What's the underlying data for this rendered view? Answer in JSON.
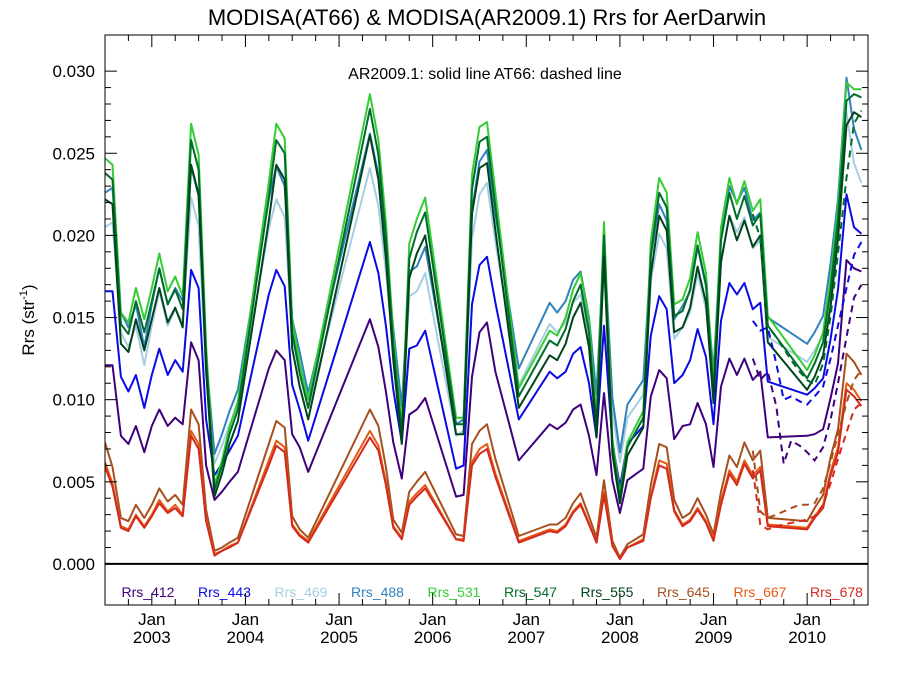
{
  "chart_data": {
    "type": "line",
    "title": "MODISA(AT66) & MODISA(AR2009.1)  Rrs for AerDarwin",
    "ylabel": "Rrs (str",
    "ylabel_sup": "-1",
    "ylabel_close": ")",
    "annotation": "AR2009.1: solid line   AT66: dashed line",
    "ylim": [
      -0.0025,
      0.0322
    ],
    "xlim": [
      2002.5,
      2010.65
    ],
    "yticks": [
      0.0,
      0.005,
      0.01,
      0.015,
      0.02,
      0.025,
      0.03
    ],
    "ytick_labels": [
      "0.000",
      "0.005",
      "0.010",
      "0.015",
      "0.020",
      "0.025",
      "0.030"
    ],
    "xticks": [
      2003,
      2004,
      2005,
      2006,
      2007,
      2008,
      2009,
      2010
    ],
    "xtick_labels_top": [
      "Jan",
      "Jan",
      "Jan",
      "Jan",
      "Jan",
      "Jan",
      "Jan",
      "Jan"
    ],
    "xtick_labels_bottom": [
      "2003",
      "2004",
      "2005",
      "2006",
      "2007",
      "2008",
      "2009",
      "2010"
    ],
    "legend_position": "bottom inside plot",
    "x": [
      2002.5,
      2002.58,
      2002.67,
      2002.75,
      2002.83,
      2002.92,
      2003.0,
      2003.08,
      2003.17,
      2003.25,
      2003.33,
      2003.42,
      2003.5,
      2003.58,
      2003.67,
      2003.75,
      2003.83,
      2003.92,
      2004.25,
      2004.33,
      2004.42,
      2004.5,
      2004.58,
      2004.67,
      2005.33,
      2005.42,
      2005.5,
      2005.58,
      2005.67,
      2005.75,
      2005.83,
      2005.92,
      2006.25,
      2006.33,
      2006.42,
      2006.5,
      2006.58,
      2006.67,
      2006.92,
      2007.25,
      2007.33,
      2007.42,
      2007.5,
      2007.58,
      2007.67,
      2007.75,
      2007.83,
      2007.92,
      2008.0,
      2008.08,
      2008.25,
      2008.33,
      2008.42,
      2008.5,
      2008.58,
      2008.67,
      2008.75,
      2008.83,
      2008.92,
      2009.0,
      2009.08,
      2009.17,
      2009.25,
      2009.33,
      2009.42,
      2009.5,
      2009.58,
      2010.0,
      2010.08,
      2010.17,
      2010.25,
      2010.33,
      2010.42,
      2010.5,
      2010.58
    ],
    "series": [
      {
        "name": "Rrs_412",
        "color": "#3f007d",
        "values": [
          0.0121,
          0.0121,
          0.0078,
          0.0073,
          0.0084,
          0.0068,
          0.0084,
          0.0094,
          0.0084,
          0.0089,
          0.0085,
          0.0135,
          0.0124,
          0.006,
          0.0039,
          0.0044,
          0.005,
          0.0056,
          0.0119,
          0.013,
          0.0124,
          0.0079,
          0.0071,
          0.0056,
          0.0149,
          0.0132,
          0.0105,
          0.0074,
          0.0052,
          0.0091,
          0.0094,
          0.0101,
          0.0041,
          0.0042,
          0.0114,
          0.0141,
          0.0147,
          0.0117,
          0.0063,
          0.0085,
          0.0082,
          0.0086,
          0.0094,
          0.0097,
          0.0078,
          0.0054,
          0.0104,
          0.0051,
          0.0031,
          0.0051,
          0.0058,
          0.0102,
          0.0118,
          0.0113,
          0.0076,
          0.0084,
          0.0085,
          0.0098,
          0.0085,
          0.0059,
          0.0108,
          0.0125,
          0.0115,
          0.0125,
          0.0112,
          0.0117,
          0.0077,
          0.0078,
          0.0079,
          0.0082,
          0.0101,
          0.0122,
          0.0185,
          0.018,
          0.0178
        ]
      },
      {
        "name": "Rrs_443",
        "color": "#0a0ae6",
        "values": [
          0.0166,
          0.0166,
          0.0114,
          0.0105,
          0.0115,
          0.0095,
          0.0115,
          0.0131,
          0.0115,
          0.0124,
          0.0117,
          0.0179,
          0.0168,
          0.0088,
          0.0054,
          0.0061,
          0.0069,
          0.0078,
          0.0164,
          0.0179,
          0.0169,
          0.0109,
          0.0094,
          0.0075,
          0.0196,
          0.0177,
          0.0145,
          0.0106,
          0.0074,
          0.0131,
          0.0133,
          0.0142,
          0.0058,
          0.006,
          0.0158,
          0.0182,
          0.0187,
          0.0159,
          0.0088,
          0.0117,
          0.0113,
          0.0117,
          0.0128,
          0.0132,
          0.011,
          0.0077,
          0.0145,
          0.0074,
          0.0047,
          0.0073,
          0.0084,
          0.0139,
          0.0163,
          0.0155,
          0.011,
          0.0115,
          0.0124,
          0.0143,
          0.0126,
          0.0085,
          0.0148,
          0.0171,
          0.0164,
          0.0171,
          0.0155,
          0.0159,
          0.0111,
          0.0103,
          0.0107,
          0.0113,
          0.0137,
          0.0167,
          0.0225,
          0.0205,
          0.0201
        ]
      },
      {
        "name": "Rrs_469",
        "color": "#a6cee3",
        "values": [
          0.0205,
          0.0208,
          0.0141,
          0.0132,
          0.0145,
          0.0121,
          0.0145,
          0.0166,
          0.0145,
          0.0155,
          0.0147,
          0.0223,
          0.0206,
          0.0115,
          0.0061,
          0.0072,
          0.0085,
          0.0097,
          0.0204,
          0.0222,
          0.0211,
          0.0137,
          0.0118,
          0.0095,
          0.0241,
          0.0218,
          0.0178,
          0.0131,
          0.0088,
          0.0163,
          0.0166,
          0.0177,
          0.0078,
          0.0081,
          0.0198,
          0.0225,
          0.0232,
          0.0196,
          0.0109,
          0.0146,
          0.0141,
          0.0147,
          0.0159,
          0.0164,
          0.0138,
          0.0095,
          0.018,
          0.0093,
          0.0062,
          0.0089,
          0.0103,
          0.0172,
          0.0201,
          0.0192,
          0.0137,
          0.0144,
          0.0153,
          0.0177,
          0.0155,
          0.0107,
          0.0183,
          0.0212,
          0.0202,
          0.0211,
          0.0192,
          0.0197,
          0.0138,
          0.0123,
          0.013,
          0.0139,
          0.0168,
          0.0204,
          0.0275,
          0.0244,
          0.0232
        ]
      },
      {
        "name": "Rrs_488",
        "color": "#3182bd",
        "values": [
          0.0226,
          0.0229,
          0.0153,
          0.0144,
          0.0158,
          0.0132,
          0.0158,
          0.018,
          0.0158,
          0.0168,
          0.016,
          0.0242,
          0.0224,
          0.0126,
          0.0067,
          0.0079,
          0.0093,
          0.0106,
          0.0222,
          0.0242,
          0.023,
          0.0149,
          0.0129,
          0.0104,
          0.0262,
          0.0237,
          0.0194,
          0.0143,
          0.0096,
          0.0178,
          0.0181,
          0.0193,
          0.0085,
          0.0088,
          0.0215,
          0.0245,
          0.0252,
          0.0213,
          0.0119,
          0.0159,
          0.0153,
          0.016,
          0.0173,
          0.0178,
          0.015,
          0.0103,
          0.0196,
          0.0101,
          0.0068,
          0.0097,
          0.0112,
          0.0187,
          0.0219,
          0.0209,
          0.0149,
          0.0157,
          0.0166,
          0.0193,
          0.0169,
          0.0117,
          0.0199,
          0.023,
          0.022,
          0.0229,
          0.0209,
          0.0214,
          0.015,
          0.0134,
          0.0141,
          0.0151,
          0.0183,
          0.0222,
          0.0296,
          0.0265,
          0.0252
        ]
      },
      {
        "name": "Rrs_531",
        "color": "#33cc33",
        "values": [
          0.0247,
          0.0243,
          0.0153,
          0.0147,
          0.0168,
          0.0149,
          0.0168,
          0.0189,
          0.0166,
          0.0175,
          0.0163,
          0.0268,
          0.0249,
          0.0133,
          0.0048,
          0.0063,
          0.0083,
          0.0099,
          0.0232,
          0.0268,
          0.0259,
          0.0148,
          0.0122,
          0.01,
          0.0286,
          0.0258,
          0.0208,
          0.0139,
          0.0083,
          0.0195,
          0.021,
          0.0223,
          0.0089,
          0.0089,
          0.0237,
          0.0266,
          0.0269,
          0.0226,
          0.0107,
          0.0142,
          0.0139,
          0.015,
          0.0167,
          0.0177,
          0.0148,
          0.0087,
          0.0208,
          0.0076,
          0.0042,
          0.0074,
          0.0093,
          0.0196,
          0.0235,
          0.0226,
          0.0158,
          0.0161,
          0.0174,
          0.0202,
          0.0177,
          0.011,
          0.0205,
          0.0235,
          0.0219,
          0.0233,
          0.0215,
          0.0222,
          0.0151,
          0.0118,
          0.0127,
          0.0141,
          0.0174,
          0.0218,
          0.0293,
          0.0289,
          0.0289
        ]
      },
      {
        "name": "Rrs_547",
        "color": "#006d2c",
        "values": [
          0.0238,
          0.0234,
          0.0146,
          0.014,
          0.016,
          0.0141,
          0.016,
          0.018,
          0.0158,
          0.0167,
          0.0155,
          0.0258,
          0.024,
          0.0126,
          0.0045,
          0.006,
          0.0079,
          0.0094,
          0.0223,
          0.0258,
          0.025,
          0.0141,
          0.0116,
          0.0095,
          0.0277,
          0.0249,
          0.0199,
          0.0133,
          0.0079,
          0.0186,
          0.0202,
          0.0214,
          0.0085,
          0.0085,
          0.0228,
          0.0257,
          0.026,
          0.0217,
          0.0102,
          0.0136,
          0.0133,
          0.0143,
          0.016,
          0.017,
          0.0141,
          0.0083,
          0.02,
          0.0072,
          0.004,
          0.0071,
          0.0089,
          0.0188,
          0.0226,
          0.0217,
          0.0151,
          0.0154,
          0.0167,
          0.0194,
          0.017,
          0.0105,
          0.0197,
          0.0226,
          0.021,
          0.0224,
          0.0206,
          0.0213,
          0.0145,
          0.0113,
          0.0122,
          0.0135,
          0.0167,
          0.021,
          0.0282,
          0.0286,
          0.0284
        ]
      },
      {
        "name": "Rrs_555",
        "color": "#00441b",
        "values": [
          0.0222,
          0.0219,
          0.0134,
          0.0129,
          0.0149,
          0.013,
          0.0149,
          0.0168,
          0.0147,
          0.0156,
          0.0144,
          0.0243,
          0.0225,
          0.0118,
          0.0041,
          0.0055,
          0.0073,
          0.0087,
          0.0209,
          0.0243,
          0.0234,
          0.0131,
          0.0108,
          0.0088,
          0.0261,
          0.0234,
          0.0186,
          0.0124,
          0.0073,
          0.0174,
          0.0189,
          0.02,
          0.0079,
          0.0079,
          0.0213,
          0.0241,
          0.0244,
          0.0203,
          0.0095,
          0.0127,
          0.0124,
          0.0134,
          0.015,
          0.0159,
          0.0132,
          0.0077,
          0.0187,
          0.0067,
          0.0037,
          0.0066,
          0.0083,
          0.0176,
          0.0212,
          0.0203,
          0.0141,
          0.0144,
          0.0156,
          0.0181,
          0.0159,
          0.0098,
          0.0184,
          0.0212,
          0.0197,
          0.0209,
          0.0193,
          0.02,
          0.0135,
          0.0106,
          0.0114,
          0.0127,
          0.0157,
          0.0198,
          0.0267,
          0.0275,
          0.0272
        ]
      },
      {
        "name": "Rrs_645",
        "color": "#a6501e",
        "values": [
          0.0074,
          0.0059,
          0.0028,
          0.0026,
          0.0036,
          0.0028,
          0.0036,
          0.0046,
          0.0038,
          0.0042,
          0.0036,
          0.0094,
          0.0085,
          0.0033,
          0.0008,
          0.001,
          0.0013,
          0.0016,
          0.0073,
          0.0087,
          0.0083,
          0.0029,
          0.0021,
          0.0016,
          0.0094,
          0.0084,
          0.0059,
          0.0027,
          0.0019,
          0.0044,
          0.005,
          0.0056,
          0.0018,
          0.0017,
          0.0073,
          0.0081,
          0.0085,
          0.0064,
          0.0017,
          0.0024,
          0.0024,
          0.0028,
          0.0037,
          0.0043,
          0.0029,
          0.0016,
          0.0051,
          0.0014,
          0.0004,
          0.0012,
          0.0018,
          0.0048,
          0.0073,
          0.0071,
          0.0039,
          0.0028,
          0.0031,
          0.004,
          0.003,
          0.0018,
          0.0044,
          0.0066,
          0.0059,
          0.0074,
          0.0063,
          0.0069,
          0.0028,
          0.0026,
          0.0034,
          0.0042,
          0.0065,
          0.0082,
          0.0128,
          0.0123,
          0.0115
        ]
      },
      {
        "name": "Rrs_667",
        "color": "#e65a14",
        "values": [
          0.0062,
          0.0049,
          0.0023,
          0.0021,
          0.003,
          0.0023,
          0.003,
          0.0039,
          0.0032,
          0.0036,
          0.003,
          0.0081,
          0.0073,
          0.0027,
          0.0006,
          0.0008,
          0.0011,
          0.0013,
          0.0063,
          0.0075,
          0.0071,
          0.0024,
          0.0018,
          0.0014,
          0.0081,
          0.0072,
          0.005,
          0.0023,
          0.0016,
          0.0038,
          0.0043,
          0.0048,
          0.0015,
          0.0015,
          0.0062,
          0.007,
          0.0073,
          0.0055,
          0.0014,
          0.0021,
          0.002,
          0.0024,
          0.0032,
          0.0037,
          0.0025,
          0.0013,
          0.0044,
          0.0012,
          0.0003,
          0.001,
          0.0015,
          0.0041,
          0.0063,
          0.0061,
          0.0033,
          0.0024,
          0.0027,
          0.0034,
          0.0026,
          0.0015,
          0.0038,
          0.0057,
          0.005,
          0.0063,
          0.0054,
          0.0059,
          0.0024,
          0.0022,
          0.0029,
          0.0036,
          0.0056,
          0.0071,
          0.011,
          0.0106,
          0.0099
        ]
      },
      {
        "name": "Rrs_678",
        "color": "#d42a1e",
        "values": [
          0.0059,
          0.0047,
          0.0022,
          0.002,
          0.0029,
          0.0022,
          0.0029,
          0.0037,
          0.0031,
          0.0034,
          0.0029,
          0.0078,
          0.007,
          0.0026,
          0.0005,
          0.0008,
          0.001,
          0.0013,
          0.006,
          0.0072,
          0.0068,
          0.0023,
          0.0017,
          0.0013,
          0.0077,
          0.0069,
          0.0048,
          0.0022,
          0.0015,
          0.0036,
          0.0041,
          0.0046,
          0.0015,
          0.0014,
          0.006,
          0.0067,
          0.007,
          0.0053,
          0.0013,
          0.002,
          0.0019,
          0.0023,
          0.0031,
          0.0036,
          0.0024,
          0.0013,
          0.0042,
          0.0011,
          0.0003,
          0.001,
          0.0014,
          0.004,
          0.006,
          0.0058,
          0.0032,
          0.0023,
          0.0026,
          0.0033,
          0.0025,
          0.0014,
          0.0036,
          0.0055,
          0.0048,
          0.0061,
          0.0052,
          0.0057,
          0.0023,
          0.0021,
          0.0028,
          0.0034,
          0.0054,
          0.0068,
          0.0106,
          0.0102,
          0.0096
        ]
      }
    ],
    "dashed_series": {
      "x": [
        2009.42,
        2009.5,
        2009.58,
        2009.67,
        2009.75,
        2009.83,
        2009.92,
        2010.0,
        2010.08,
        2010.17,
        2010.25,
        2010.33,
        2010.42,
        2010.5,
        2010.58
      ],
      "series": [
        {
          "name": "Rrs_412",
          "color": "#3f007d",
          "values": [
            0.0125,
            0.0112,
            0.0117,
            0.0096,
            0.0061,
            0.0075,
            0.0072,
            0.0068,
            0.0063,
            0.0071,
            0.0088,
            0.011,
            0.0138,
            0.0162,
            0.017
          ]
        },
        {
          "name": "Rrs_443",
          "color": "#0a0ae6",
          "values": [
            0.0148,
            0.0142,
            0.0144,
            0.0122,
            0.01,
            0.0102,
            0.0099,
            0.0097,
            0.0102,
            0.0108,
            0.0125,
            0.0145,
            0.0168,
            0.0188,
            0.0196
          ]
        },
        {
          "name": "Rrs_547",
          "color": "#006d2c",
          "values": [
            0.0213,
            0.0198,
            0.0145,
            0.0138,
            0.0131,
            0.0124,
            0.0117,
            0.0112,
            0.0109,
            0.0122,
            0.0151,
            0.0189,
            0.0235,
            0.0268,
            0.0276
          ]
        },
        {
          "name": "Rrs_645",
          "color": "#a6501e",
          "values": [
            0.0069,
            0.0032,
            0.0028,
            0.003,
            0.0032,
            0.0034,
            0.0036,
            0.0036,
            0.0037,
            0.0046,
            0.0062,
            0.0079,
            0.0098,
            0.0112,
            0.0118
          ]
        },
        {
          "name": "Rrs_678",
          "color": "#d42a1e",
          "values": [
            0.0057,
            0.0024,
            0.0021,
            0.0023,
            0.0024,
            0.0025,
            0.0026,
            0.0027,
            0.0029,
            0.0036,
            0.0049,
            0.0064,
            0.008,
            0.0094,
            0.0098
          ]
        }
      ]
    },
    "zero_line": 0.0
  }
}
